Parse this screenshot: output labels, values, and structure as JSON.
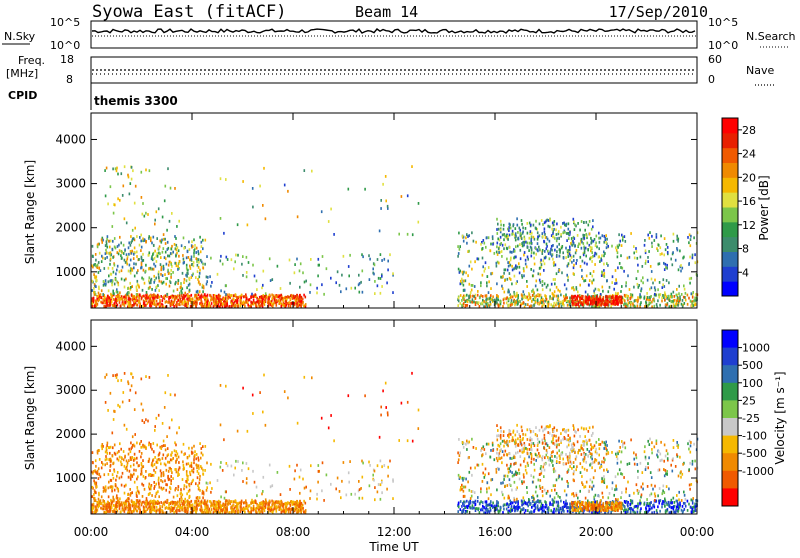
{
  "header": {
    "left": "Syowa East (fitACF)",
    "center": "Beam 14",
    "right": "17/Sep/2010"
  },
  "noise_panel": {
    "left_label": "N.Sky",
    "right_label": "N.Search",
    "left_ticks": [
      "10^5",
      "10^0"
    ],
    "right_ticks": [
      "10^5",
      "10^0"
    ]
  },
  "freq_panel": {
    "left_label_line1": "Freq.",
    "left_label_line2": "[MHz]",
    "right_label": "Nave",
    "left_ticks": [
      "18",
      "8"
    ],
    "right_ticks": [
      "60",
      "0"
    ]
  },
  "cpid": {
    "label": "CPID",
    "value": "themis 3300"
  },
  "time_axis": {
    "ticks": [
      "00:00",
      "04:00",
      "08:00",
      "12:00",
      "16:00",
      "20:00",
      "00:00"
    ],
    "label": "Time UT"
  },
  "chart_data": [
    {
      "type": "heatmap",
      "title": "",
      "ylabel": "Slant Range [km]",
      "ylim": [
        180,
        4600
      ],
      "yticks": [
        "1000",
        "2000",
        "3000",
        "4000"
      ],
      "xlim_hours": [
        0,
        24
      ],
      "colorbar": {
        "label": "Power [dB]",
        "ticks": [
          "4",
          "8",
          "12",
          "16",
          "20",
          "24",
          "28"
        ],
        "range": [
          0,
          30
        ],
        "colors": [
          "#0000ff",
          "#1f3fd0",
          "#2f6fb0",
          "#3c8c6c",
          "#2f9a48",
          "#7cc64a",
          "#e0e040",
          "#f5b800",
          "#f08a00",
          "#f05a00",
          "#e82000",
          "#ff0000"
        ]
      },
      "description_bands": [
        {
          "range_km": [
            180,
            500
          ],
          "hours": [
            0,
            8.5
          ],
          "level": "high"
        },
        {
          "range_km": [
            500,
            1800
          ],
          "hours": [
            0,
            4.5
          ],
          "level": "medium"
        },
        {
          "range_km": [
            300,
            1900
          ],
          "hours": [
            14.5,
            24
          ],
          "level": "medium"
        },
        {
          "range_km": [
            250,
            500
          ],
          "hours": [
            19,
            21
          ],
          "level": "high"
        }
      ]
    },
    {
      "type": "heatmap",
      "title": "",
      "ylabel": "Slant Range [km]",
      "ylim": [
        180,
        4600
      ],
      "yticks": [
        "1000",
        "2000",
        "3000",
        "4000"
      ],
      "xlim_hours": [
        0,
        24
      ],
      "colorbar": {
        "label": "Velocity [m s⁻¹]",
        "ticks": [
          "1000",
          "500",
          "100",
          "25",
          "-25",
          "-100",
          "-500",
          "-1000"
        ],
        "colors": [
          "#0000ff",
          "#1f3fd0",
          "#2f6fb0",
          "#2f9a48",
          "#7cc64a",
          "#c8c8c8",
          "#f5b800",
          "#f08a00",
          "#f05a00",
          "#ff0000"
        ]
      }
    }
  ]
}
